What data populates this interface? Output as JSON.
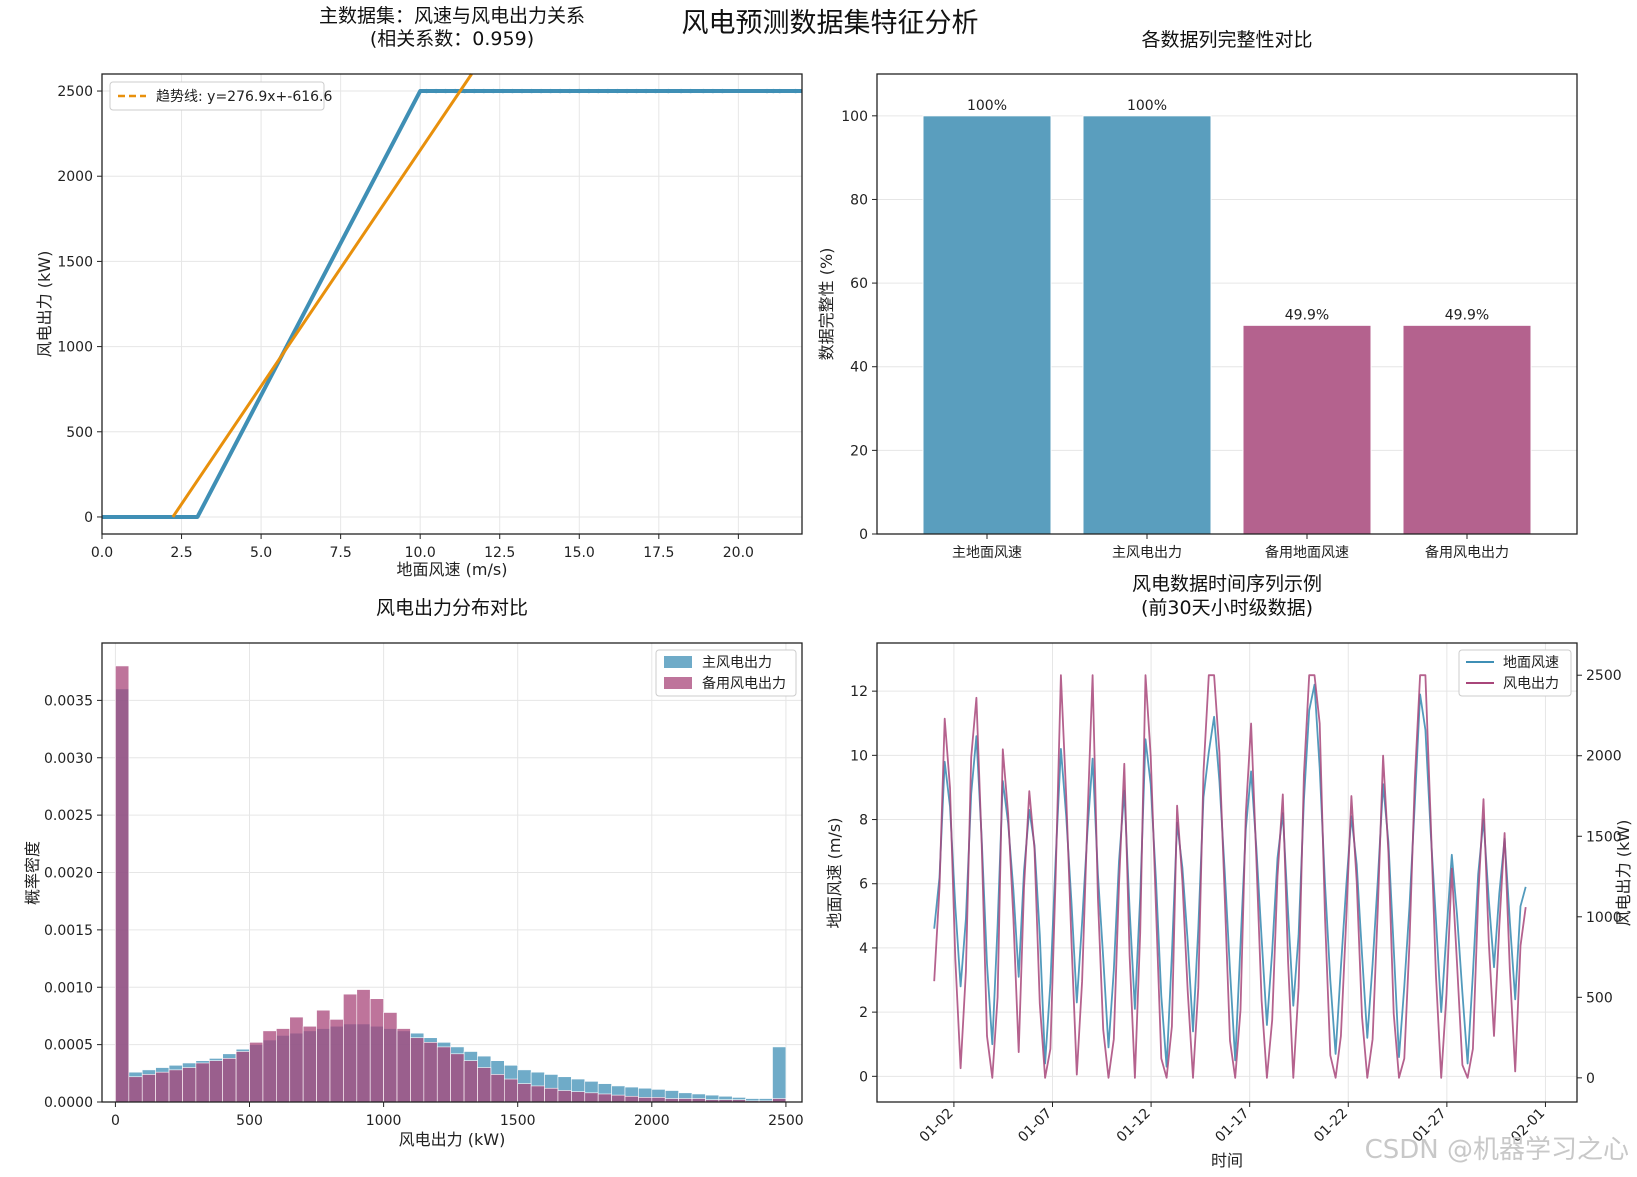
{
  "figure": {
    "suptitle": "风电预测数据集特征分析",
    "watermark": "CSDN @机器学习之心",
    "colors": {
      "primary": "#3f8fb5",
      "secondary": "#a8467a",
      "trend": "#e8900c"
    }
  },
  "chart_data": [
    {
      "type": "scatter",
      "title_line1": "主数据集：风速与风电出力关系",
      "title_line2": "(相关系数：0.959)",
      "xlabel": "地面风速 (m/s)",
      "ylabel": "风电出力 (kW)",
      "xlim": [
        0,
        22
      ],
      "ylim": [
        -100,
        2600
      ],
      "xticks": [
        "0.0",
        "2.5",
        "5.0",
        "7.5",
        "10.0",
        "12.5",
        "15.0",
        "17.5",
        "20.0"
      ],
      "yticks": [
        "0",
        "500",
        "1000",
        "1500",
        "2000",
        "2500"
      ],
      "grid": true,
      "legend": {
        "position": "top-left",
        "entries": [
          "趋势线: y=276.9x+-616.6"
        ]
      },
      "power_curve": {
        "x": [
          0,
          3,
          10,
          22
        ],
        "y": [
          0,
          0,
          2500,
          2500
        ]
      },
      "saturated_points_x": [
        10.2,
        10.5,
        10.8,
        11.1,
        11.4,
        11.7,
        12.0,
        12.3,
        12.6,
        12.9,
        13.2,
        13.5,
        13.8,
        14.1,
        14.4,
        14.7,
        15.0,
        15.3,
        15.6,
        15.9,
        16.2,
        16.5,
        16.8,
        17.1,
        17.4,
        17.8,
        18.2,
        18.5,
        18.9,
        19.2,
        19.5,
        20.9,
        21.1,
        21.3,
        21.8
      ],
      "saturated_points_y": 2500,
      "trend": {
        "slope": 276.9,
        "intercept": -616.6
      }
    },
    {
      "type": "bar",
      "title": "各数据列完整性对比",
      "ylabel": "数据完整性 (%)",
      "categories": [
        "主地面风速",
        "主风电出力",
        "备用地面风速",
        "备用风电出力"
      ],
      "values": [
        100,
        100,
        49.9,
        49.9
      ],
      "value_labels": [
        "100%",
        "100%",
        "49.9%",
        "49.9%"
      ],
      "bar_colors": [
        "#5a9ebe",
        "#5a9ebe",
        "#b4628e",
        "#b4628e"
      ],
      "ylim": [
        0,
        110
      ],
      "yticks": [
        "0",
        "20",
        "40",
        "60",
        "80",
        "100"
      ],
      "grid": true
    },
    {
      "type": "bar",
      "subtype": "histogram",
      "title": "风电出力分布对比",
      "xlabel": "风电出力 (kW)",
      "ylabel": "概率密度",
      "xlim": [
        -50,
        2560
      ],
      "ylim": [
        0,
        0.004
      ],
      "xticks": [
        "0",
        "500",
        "1000",
        "1500",
        "2000",
        "2500"
      ],
      "yticks": [
        "0.0000",
        "0.0005",
        "0.0010",
        "0.0015",
        "0.0020",
        "0.0025",
        "0.0030",
        "0.0035"
      ],
      "grid": true,
      "legend": {
        "position": "top-right",
        "entries": [
          "主风电出力",
          "备用风电出力"
        ]
      },
      "bin_width": 50,
      "bin_start": 0,
      "series": [
        {
          "name": "主风电出力",
          "values": [
            0.0036,
            0.00026,
            0.00028,
            0.0003,
            0.00032,
            0.00034,
            0.00036,
            0.00038,
            0.00042,
            0.00046,
            0.0005,
            0.00054,
            0.00058,
            0.0006,
            0.00062,
            0.00064,
            0.00066,
            0.00068,
            0.00068,
            0.00066,
            0.00064,
            0.00062,
            0.0006,
            0.00056,
            0.00052,
            0.00048,
            0.00044,
            0.0004,
            0.00036,
            0.00032,
            0.00028,
            0.00026,
            0.00024,
            0.00022,
            0.0002,
            0.00018,
            0.00016,
            0.00014,
            0.00013,
            0.00012,
            0.00011,
            0.0001,
            8e-05,
            7e-05,
            6e-05,
            5e-05,
            4e-05,
            3e-05,
            3e-05,
            0.00048
          ]
        },
        {
          "name": "备用风电出力",
          "values": [
            0.0038,
            0.00022,
            0.00024,
            0.00026,
            0.00028,
            0.0003,
            0.00034,
            0.00036,
            0.00038,
            0.00044,
            0.00052,
            0.00062,
            0.00064,
            0.00074,
            0.00066,
            0.0008,
            0.00072,
            0.00094,
            0.00098,
            0.0009,
            0.00078,
            0.00064,
            0.00056,
            0.00052,
            0.00048,
            0.00042,
            0.00036,
            0.0003,
            0.00024,
            0.0002,
            0.00016,
            0.00014,
            0.00012,
            0.0001,
            9e-05,
            8e-05,
            7e-05,
            6e-05,
            5e-05,
            4e-05,
            4e-05,
            3e-05,
            3e-05,
            3e-05,
            2e-05,
            2e-05,
            2e-05,
            1e-05,
            1e-05,
            3e-05
          ]
        }
      ]
    },
    {
      "type": "line",
      "title_line1": "风电数据时间序列示例",
      "title_line2": "(前30天小时级数据)",
      "xlabel": "时间",
      "ylabel_left": "地面风速 (m/s)",
      "ylabel_right": "风电出力 (kW)",
      "xticks": [
        "01-02",
        "01-07",
        "01-12",
        "01-17",
        "01-22",
        "01-27",
        "02-01"
      ],
      "xlim_days": [
        -2.9,
        32.6
      ],
      "ylim_left": [
        -0.8,
        13.5
      ],
      "yticks_left": [
        "0",
        "2",
        "4",
        "6",
        "8",
        "10",
        "12"
      ],
      "ylim_right": [
        -150,
        2700
      ],
      "yticks_right": [
        "0",
        "500",
        "1000",
        "1500",
        "2000",
        "2500"
      ],
      "grid": true,
      "legend": {
        "position": "top-right",
        "entries": [
          "地面风速",
          "风电出力"
        ]
      },
      "series": [
        {
          "name": "地面风速",
          "axis": "left",
          "values": [
            4.6,
            6.2,
            9.8,
            8.4,
            5.3,
            2.8,
            4.9,
            8.8,
            10.6,
            7.4,
            3.5,
            1.0,
            4.7,
            9.2,
            7.9,
            5.8,
            3.1,
            6.4,
            8.3,
            7.2,
            4.4,
            0.4,
            2.9,
            6.8,
            10.2,
            8.1,
            5.4,
            2.3,
            4.8,
            7.6,
            9.9,
            6.3,
            3.7,
            0.9,
            3.3,
            6.7,
            8.9,
            5.2,
            2.1,
            5.6,
            10.5,
            9.1,
            6.1,
            2.5,
            0.3,
            3.8,
            7.9,
            6.5,
            4.2,
            1.4,
            4.6,
            8.7,
            10.1,
            11.2,
            9.2,
            6.4,
            3.3,
            0.5,
            4.1,
            7.7,
            9.5,
            7.1,
            4.3,
            1.6,
            3.9,
            6.8,
            8.2,
            5.1,
            2.2,
            4.4,
            8.6,
            11.4,
            12.2,
            9.6,
            6.0,
            3.0,
            0.7,
            3.4,
            5.9,
            8.1,
            6.6,
            3.8,
            1.2,
            3.5,
            6.1,
            9.1,
            7.3,
            4.0,
            0.6,
            2.8,
            5.3,
            8.5,
            11.9,
            10.8,
            7.6,
            4.9,
            2.0,
            4.5,
            6.9,
            5.0,
            2.6,
            0.4,
            3.2,
            6.3,
            8.0,
            5.5,
            3.4,
            5.7,
            7.4,
            4.8,
            2.4,
            5.3,
            5.9
          ]
        },
        {
          "name": "风电出力",
          "axis": "right",
          "values": [
            600,
            1180,
            2230,
            1800,
            740,
            60,
            660,
            1990,
            2360,
            1450,
            260,
            0,
            500,
            2040,
            1640,
            990,
            160,
            1180,
            1780,
            1420,
            460,
            0,
            180,
            1260,
            2500,
            1750,
            840,
            20,
            600,
            1600,
            2500,
            1120,
            300,
            0,
            240,
            1200,
            1950,
            760,
            0,
            900,
            2500,
            2000,
            1050,
            120,
            0,
            320,
            1690,
            1220,
            540,
            0,
            560,
            1900,
            2500,
            2500,
            2020,
            1130,
            230,
            0,
            420,
            1640,
            2200,
            1350,
            480,
            0,
            360,
            1250,
            1760,
            720,
            0,
            560,
            1880,
            2500,
            2500,
            2200,
            1000,
            140,
            0,
            260,
            980,
            1750,
            1220,
            380,
            0,
            240,
            1050,
            2000,
            1400,
            400,
            0,
            120,
            840,
            1850,
            2500,
            2500,
            1600,
            640,
            0,
            520,
            1300,
            700,
            80,
            0,
            180,
            1120,
            1730,
            840,
            260,
            940,
            1520,
            660,
            40,
            820,
            1060
          ]
        }
      ]
    }
  ]
}
